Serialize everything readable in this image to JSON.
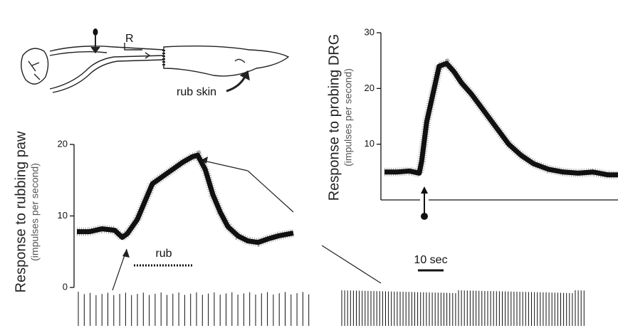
{
  "diagram": {
    "labels": [
      "R",
      "rub skin"
    ]
  },
  "chart_data": [
    {
      "type": "line",
      "ylabel": "Response to rubbing paw",
      "ylabel_sub": "(impulses per second)",
      "annotation": "rub",
      "ylim": [
        0,
        20
      ],
      "yticks": [
        0,
        10,
        20
      ],
      "x": [
        0,
        5,
        10,
        15,
        18,
        20,
        24,
        27,
        30,
        34,
        38,
        42,
        46,
        48,
        51,
        54,
        57,
        60,
        64,
        68,
        72,
        76,
        80,
        86
      ],
      "series": [
        {
          "color": "#111111",
          "values": [
            7.8,
            7.8,
            8.2,
            8.0,
            7.0,
            7.5,
            9.5,
            12,
            14.5,
            15.5,
            16.5,
            17.5,
            18.3,
            18.5,
            16.5,
            13,
            10.5,
            8.5,
            7.2,
            6.5,
            6.3,
            6.8,
            7.2,
            7.6
          ]
        }
      ]
    },
    {
      "type": "line",
      "ylabel": "Response to probing DRG",
      "ylabel_sub": "(impulses per second)",
      "annotation": "10 sec",
      "ylim": [
        0,
        30
      ],
      "yticks": [
        10,
        20,
        30
      ],
      "x": [
        0,
        5,
        10,
        14,
        15,
        17,
        20,
        22,
        25,
        28,
        31,
        35,
        40,
        45,
        50,
        55,
        60,
        66,
        72,
        78,
        84,
        90,
        94
      ],
      "series": [
        {
          "color": "#111111",
          "values": [
            5,
            5,
            5.2,
            4.8,
            7,
            14,
            20,
            24,
            24.5,
            23,
            21,
            19,
            16,
            13,
            10,
            8,
            6.5,
            5.5,
            5,
            4.8,
            5,
            4.5,
            4.5
          ]
        }
      ]
    }
  ]
}
